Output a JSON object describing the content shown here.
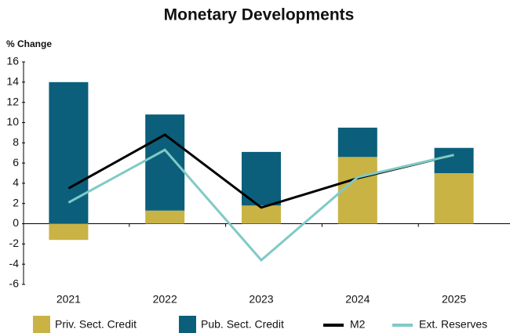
{
  "chart_data": {
    "type": "bar-line",
    "title": "Monetary Developments",
    "y_axis_label": "% Change",
    "categories": [
      "2021",
      "2022",
      "2023",
      "2024",
      "2025"
    ],
    "series": [
      {
        "name": "Priv. Sect. Credit",
        "type": "bar",
        "color": "#c9b345",
        "values": [
          -1.6,
          1.3,
          1.8,
          6.6,
          5.0
        ]
      },
      {
        "name": "Pub. Sect. Credit",
        "type": "bar",
        "color": "#0b5f7b",
        "values": [
          14.0,
          9.5,
          5.3,
          2.9,
          2.5
        ]
      },
      {
        "name": "M2",
        "type": "line",
        "color": "#000000",
        "values": [
          3.5,
          8.8,
          1.6,
          4.5,
          6.8
        ]
      },
      {
        "name": "Ext. Reserves",
        "type": "line",
        "color": "#7fcac6",
        "values": [
          2.1,
          7.3,
          -3.6,
          4.6,
          6.8
        ]
      }
    ],
    "ylim": [
      -6,
      16
    ],
    "yticks": [
      -6,
      -4,
      -2,
      0,
      2,
      4,
      6,
      8,
      10,
      12,
      14,
      16
    ],
    "yticks_labels": null
  }
}
